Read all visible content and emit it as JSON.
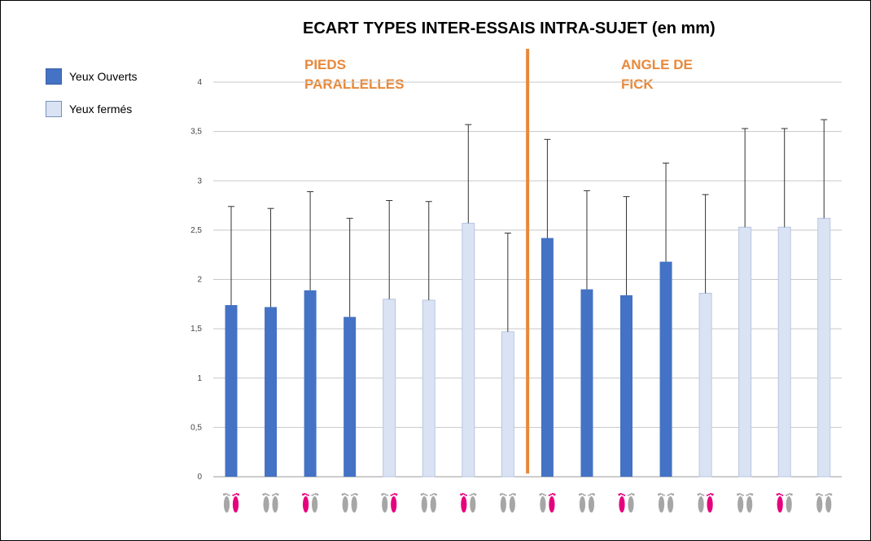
{
  "chart_data": {
    "type": "bar",
    "title": "ECART TYPES INTER-ESSAIS INTRA-SUJET (en mm)",
    "ylim": [
      0,
      4
    ],
    "yticks": [
      "0",
      "0,5",
      "1",
      "1,5",
      "2",
      "2,5",
      "3",
      "3,5",
      "4"
    ],
    "grid": true,
    "legend": [
      {
        "label": "Yeux Ouverts",
        "color": "#4472c4"
      },
      {
        "label": "Yeux fermés",
        "color": "#dae3f3"
      }
    ],
    "sections": [
      {
        "label_line1": "PIEDS",
        "label_line2": "PARALLELLES"
      },
      {
        "label_line1": "ANGLE DE",
        "label_line2": "FICK"
      }
    ],
    "divider_color": "#e8883a",
    "bars": [
      {
        "value": 1.74,
        "error_top": 2.74,
        "condition": "Yeux Ouverts",
        "feet_icon": "pink-right-foot"
      },
      {
        "value": 1.72,
        "error_top": 2.72,
        "condition": "Yeux Ouverts",
        "feet_icon": "grey-feet"
      },
      {
        "value": 1.89,
        "error_top": 2.89,
        "condition": "Yeux Ouverts",
        "feet_icon": "pink-left-foot"
      },
      {
        "value": 1.62,
        "error_top": 2.62,
        "condition": "Yeux Ouverts",
        "feet_icon": "grey-feet"
      },
      {
        "value": 1.8,
        "error_top": 2.8,
        "condition": "Yeux fermés",
        "feet_icon": "pink-right-foot"
      },
      {
        "value": 1.79,
        "error_top": 2.79,
        "condition": "Yeux fermés",
        "feet_icon": "grey-feet"
      },
      {
        "value": 2.57,
        "error_top": 3.57,
        "condition": "Yeux fermés",
        "feet_icon": "pink-left-foot"
      },
      {
        "value": 1.47,
        "error_top": 2.47,
        "condition": "Yeux fermés",
        "feet_icon": "grey-feet"
      },
      {
        "value": 2.42,
        "error_top": 3.42,
        "condition": "Yeux Ouverts",
        "feet_icon": "pink-right-foot"
      },
      {
        "value": 1.9,
        "error_top": 2.9,
        "condition": "Yeux Ouverts",
        "feet_icon": "grey-feet"
      },
      {
        "value": 1.84,
        "error_top": 2.84,
        "condition": "Yeux Ouverts",
        "feet_icon": "pink-left-foot"
      },
      {
        "value": 2.18,
        "error_top": 3.18,
        "condition": "Yeux Ouverts",
        "feet_icon": "grey-feet"
      },
      {
        "value": 1.86,
        "error_top": 2.86,
        "condition": "Yeux fermés",
        "feet_icon": "pink-right-foot"
      },
      {
        "value": 2.53,
        "error_top": 3.53,
        "condition": "Yeux fermés",
        "feet_icon": "grey-feet"
      },
      {
        "value": 2.53,
        "error_top": 3.53,
        "condition": "Yeux fermés",
        "feet_icon": "pink-left-foot"
      },
      {
        "value": 2.62,
        "error_top": 3.62,
        "condition": "Yeux fermés",
        "feet_icon": "grey-feet"
      }
    ]
  }
}
